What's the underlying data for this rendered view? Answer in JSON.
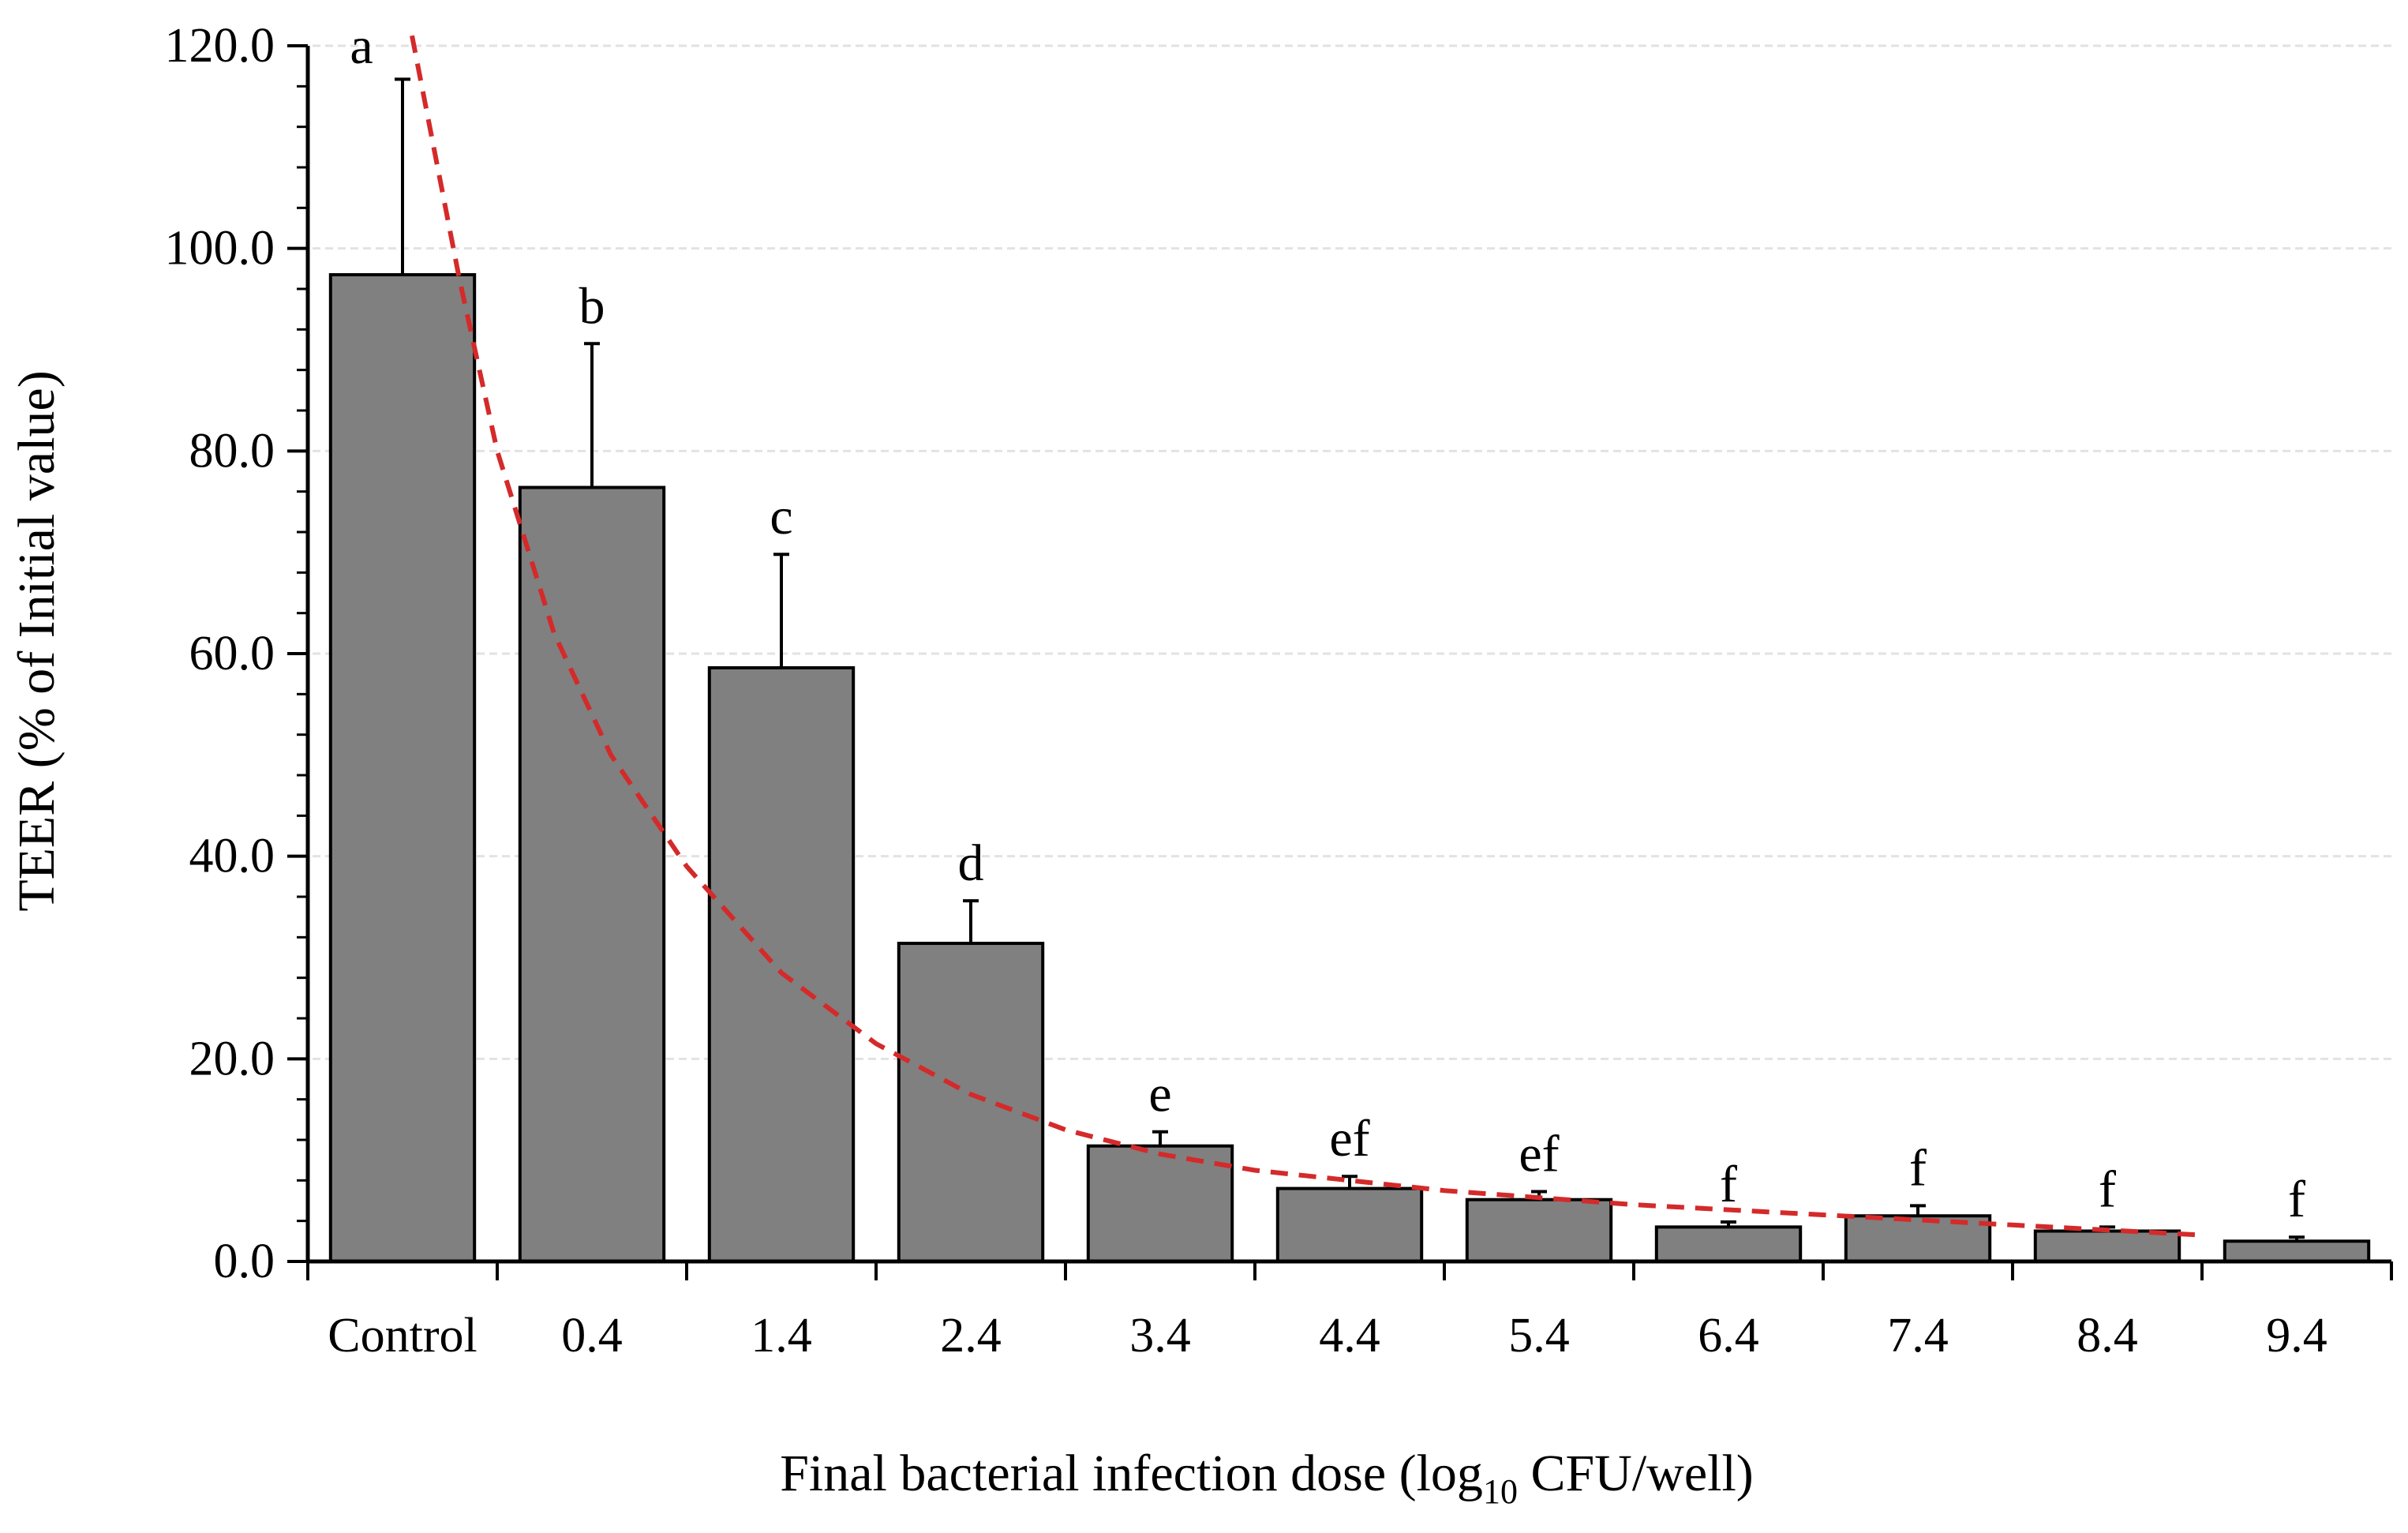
{
  "chart_data": {
    "type": "bar",
    "categories": [
      "Control",
      "0.4",
      "1.4",
      "2.4",
      "3.4",
      "4.4",
      "5.4",
      "6.4",
      "7.4",
      "8.4",
      "9.4"
    ],
    "values": [
      97.4,
      76.4,
      58.6,
      31.4,
      11.4,
      7.2,
      6.1,
      3.4,
      4.5,
      3.0,
      2.0
    ],
    "errors": [
      19.3,
      14.2,
      11.2,
      4.2,
      1.4,
      1.2,
      0.8,
      0.5,
      1.0,
      0.4,
      0.4
    ],
    "significance": [
      "a",
      "b",
      "c",
      "d",
      "e",
      "ef",
      "ef",
      "f",
      "f",
      "f",
      "f"
    ],
    "xlabel_main": "Final bacterial infection dose (log",
    "xlabel_sub": "10",
    "xlabel_tail": " CFU/well)",
    "ylabel": "TEER (% of Initial value)",
    "ylim": [
      0,
      120
    ],
    "yticks": [
      "0.0",
      "20.0",
      "40.0",
      "60.0",
      "80.0",
      "100.0",
      "120.0"
    ],
    "ytick_values": [
      0,
      20,
      40,
      60,
      80,
      100,
      120
    ],
    "grid": true,
    "trendline": {
      "style": "dashed",
      "x": [
        0.55,
        0.8,
        1.0,
        1.3,
        1.6,
        2.0,
        2.5,
        3.0,
        3.5,
        4.0,
        4.5,
        5.0,
        6.0,
        7.0,
        8.0,
        9.0,
        10.0
      ],
      "y": [
        121,
        97,
        80,
        62,
        50,
        39,
        28.5,
        21.5,
        16.5,
        13,
        10.6,
        9,
        7,
        5.6,
        4.6,
        3.6,
        2.6
      ]
    },
    "colors": {
      "bar_fill": "#808080",
      "bar_stroke": "#000000",
      "trendline": "#d42a2a",
      "grid": "#e2e2e2",
      "axis": "#000000"
    }
  }
}
